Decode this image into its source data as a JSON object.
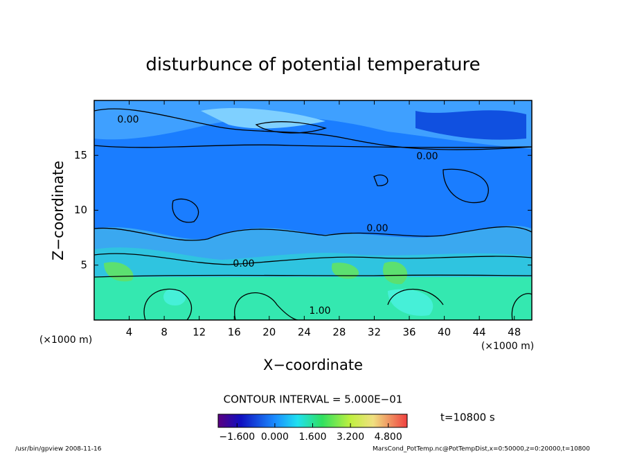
{
  "chart_data": {
    "type": "contour",
    "title": "disturbunce of potential temperature",
    "xlabel": "X−coordinate",
    "ylabel": "Z−coordinate",
    "x_unit": "(×1000 m)",
    "y_unit": "(×1000 m)",
    "xlim": [
      0,
      50
    ],
    "ylim": [
      0,
      20
    ],
    "xticks": [
      4,
      8,
      12,
      16,
      20,
      24,
      28,
      32,
      36,
      40,
      44,
      48
    ],
    "yticks": [
      5,
      10,
      15
    ],
    "contour_labels": [
      "0.00",
      "0.00",
      "0.00",
      "0.00",
      "1.00"
    ],
    "contour_interval": "CONTOUR INTERVAL = 5.000E−01",
    "colorbar_lim": [
      -2.4,
      5.6
    ],
    "colorbar_ticks": [
      {
        "value": -1.6,
        "label": "−1.600"
      },
      {
        "value": 0,
        "label": "0.000"
      },
      {
        "value": 1.6,
        "label": "1.600"
      },
      {
        "value": 3.2,
        "label": "3.200"
      },
      {
        "value": 4.8,
        "label": "4.800"
      }
    ],
    "time_label": "t=10800 s",
    "footer_left": "/usr/bin/gpview   2008-11-16",
    "footer_right": "MarsCond_PotTemp.nc@PotTempDist,x=0:50000,z=0:20000,t=10800"
  }
}
